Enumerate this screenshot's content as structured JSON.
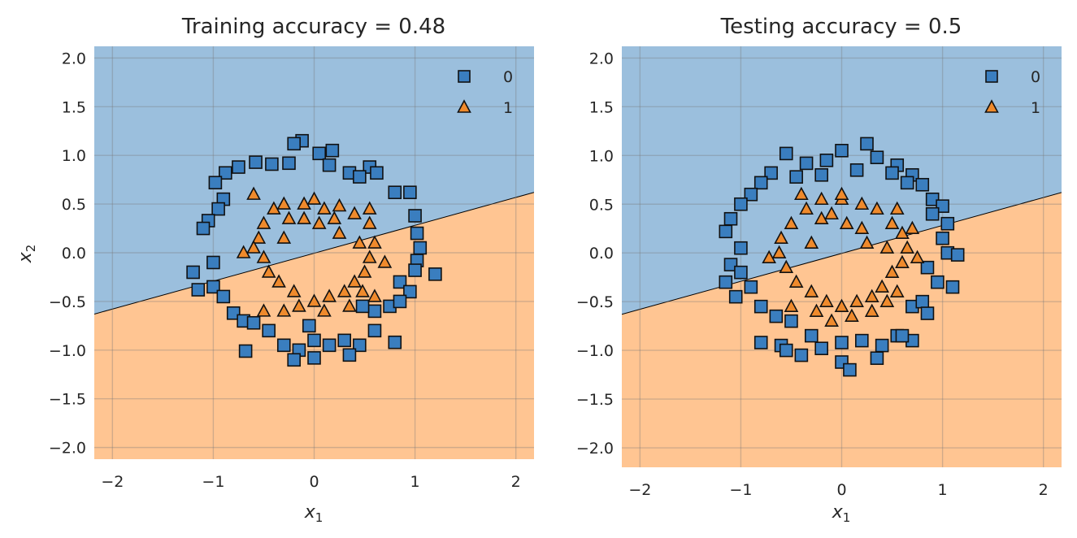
{
  "colors": {
    "class0_region": "#9bbfdd",
    "class1_region": "#ffc592",
    "class0_marker": "#3a7ebf",
    "class1_marker": "#ef8a2c",
    "grid": "#ffffff"
  },
  "chart_data": [
    {
      "type": "scatter",
      "title": "Training accuracy = 0.48",
      "xlabel": "x1",
      "ylabel": "x2",
      "xlim": [
        -2.18,
        2.18
      ],
      "ylim": [
        -2.12,
        2.12
      ],
      "xticks": [
        "−2",
        "−1",
        "0",
        "1",
        "2"
      ],
      "yticks": [
        "2.0",
        "1.5",
        "1.0",
        "0.5",
        "0.0",
        "−0.5",
        "−1.0",
        "−1.5",
        "−2.0"
      ],
      "grid": true,
      "legend": {
        "placement": "top-right",
        "entries": [
          "0",
          "1"
        ]
      },
      "decision_boundary": {
        "x": [
          -2.18,
          2.18
        ],
        "y": [
          -0.63,
          0.62
        ]
      },
      "series": [
        {
          "name": "0",
          "marker": "square",
          "points": [
            [
              -0.12,
              1.15
            ],
            [
              -0.2,
              1.12
            ],
            [
              0.05,
              1.02
            ],
            [
              0.18,
              1.05
            ],
            [
              -0.42,
              0.91
            ],
            [
              -0.58,
              0.93
            ],
            [
              -0.75,
              0.88
            ],
            [
              -0.88,
              0.82
            ],
            [
              -0.98,
              0.72
            ],
            [
              0.35,
              0.82
            ],
            [
              0.55,
              0.88
            ],
            [
              0.62,
              0.82
            ],
            [
              0.8,
              0.62
            ],
            [
              0.95,
              0.62
            ],
            [
              -0.9,
              0.55
            ],
            [
              -0.95,
              0.45
            ],
            [
              -1.05,
              0.33
            ],
            [
              -1.1,
              0.25
            ],
            [
              1.0,
              0.38
            ],
            [
              1.02,
              0.2
            ],
            [
              1.05,
              0.05
            ],
            [
              1.02,
              -0.08
            ],
            [
              1.0,
              -0.18
            ],
            [
              -1.0,
              -0.1
            ],
            [
              -1.2,
              -0.2
            ],
            [
              -1.15,
              -0.38
            ],
            [
              -1.0,
              -0.35
            ],
            [
              -0.9,
              -0.45
            ],
            [
              0.85,
              -0.3
            ],
            [
              0.95,
              -0.4
            ],
            [
              1.2,
              -0.22
            ],
            [
              -0.8,
              -0.62
            ],
            [
              -0.7,
              -0.7
            ],
            [
              -0.6,
              -0.72
            ],
            [
              0.6,
              -0.6
            ],
            [
              0.75,
              -0.55
            ],
            [
              0.85,
              -0.5
            ],
            [
              -0.45,
              -0.8
            ],
            [
              -0.3,
              -0.95
            ],
            [
              -0.15,
              -1.0
            ],
            [
              0.0,
              -0.9
            ],
            [
              0.15,
              -0.95
            ],
            [
              0.3,
              -0.9
            ],
            [
              0.45,
              -0.95
            ],
            [
              0.6,
              -0.8
            ],
            [
              -0.2,
              -1.1
            ],
            [
              0.0,
              -1.08
            ],
            [
              0.35,
              -1.05
            ],
            [
              0.8,
              -0.92
            ],
            [
              -0.68,
              -1.01
            ],
            [
              0.48,
              -0.55
            ],
            [
              -0.05,
              -0.75
            ],
            [
              0.15,
              0.9
            ],
            [
              0.45,
              0.78
            ],
            [
              -0.25,
              0.92
            ]
          ]
        },
        {
          "name": "1",
          "marker": "triangle",
          "points": [
            [
              -0.6,
              0.6
            ],
            [
              -0.3,
              0.5
            ],
            [
              -0.1,
              0.5
            ],
            [
              0.1,
              0.45
            ],
            [
              0.25,
              0.48
            ],
            [
              0.4,
              0.4
            ],
            [
              0.55,
              0.3
            ],
            [
              -0.5,
              0.3
            ],
            [
              -0.55,
              0.15
            ],
            [
              -0.6,
              0.05
            ],
            [
              -0.5,
              -0.05
            ],
            [
              -0.45,
              -0.2
            ],
            [
              -0.35,
              -0.3
            ],
            [
              -0.2,
              -0.4
            ],
            [
              0.0,
              -0.5
            ],
            [
              0.15,
              -0.45
            ],
            [
              0.3,
              -0.4
            ],
            [
              0.4,
              -0.3
            ],
            [
              0.5,
              -0.2
            ],
            [
              0.55,
              -0.05
            ],
            [
              0.6,
              0.1
            ],
            [
              -0.25,
              0.35
            ],
            [
              0.05,
              0.3
            ],
            [
              0.2,
              0.35
            ],
            [
              -0.15,
              -0.55
            ],
            [
              0.35,
              -0.55
            ],
            [
              -0.5,
              -0.6
            ],
            [
              0.6,
              -0.45
            ],
            [
              0.45,
              0.1
            ],
            [
              -0.3,
              0.15
            ],
            [
              0.7,
              -0.1
            ],
            [
              -0.7,
              0.0
            ],
            [
              0.0,
              0.55
            ],
            [
              -0.4,
              0.45
            ],
            [
              0.25,
              0.2
            ],
            [
              0.1,
              -0.6
            ],
            [
              -0.3,
              -0.6
            ],
            [
              0.55,
              0.45
            ],
            [
              0.48,
              -0.4
            ],
            [
              -0.1,
              0.35
            ]
          ]
        }
      ]
    },
    {
      "type": "scatter",
      "title": "Testing accuracy = 0.5",
      "xlabel": "x1",
      "ylabel": "",
      "xlim": [
        -2.18,
        2.18
      ],
      "ylim": [
        -2.2,
        2.12
      ],
      "xticks": [
        "−2",
        "−1",
        "0",
        "1",
        "2"
      ],
      "yticks": [
        "2.0",
        "1.5",
        "1.0",
        "0.5",
        "0.0",
        "−0.5",
        "−1.0",
        "−1.5",
        "−2.0"
      ],
      "grid": true,
      "legend": {
        "placement": "top-right",
        "entries": [
          "0",
          "1"
        ]
      },
      "decision_boundary": {
        "x": [
          -2.18,
          2.18
        ],
        "y": [
          -0.63,
          0.62
        ]
      },
      "series": [
        {
          "name": "0",
          "marker": "square",
          "points": [
            [
              -0.55,
              1.02
            ],
            [
              -0.35,
              0.92
            ],
            [
              -0.15,
              0.95
            ],
            [
              0.0,
              1.05
            ],
            [
              0.25,
              1.12
            ],
            [
              0.35,
              0.98
            ],
            [
              0.55,
              0.9
            ],
            [
              0.7,
              0.8
            ],
            [
              0.8,
              0.7
            ],
            [
              -0.7,
              0.82
            ],
            [
              -0.8,
              0.72
            ],
            [
              -0.9,
              0.6
            ],
            [
              -1.0,
              0.5
            ],
            [
              -1.1,
              0.35
            ],
            [
              -1.15,
              0.22
            ],
            [
              0.9,
              0.55
            ],
            [
              1.0,
              0.48
            ],
            [
              1.05,
              0.3
            ],
            [
              1.0,
              0.15
            ],
            [
              1.05,
              0.0
            ],
            [
              1.15,
              -0.02
            ],
            [
              -1.0,
              0.05
            ],
            [
              -1.1,
              -0.12
            ],
            [
              -1.15,
              -0.3
            ],
            [
              -1.0,
              -0.2
            ],
            [
              -0.9,
              -0.35
            ],
            [
              0.85,
              -0.15
            ],
            [
              0.95,
              -0.3
            ],
            [
              1.1,
              -0.35
            ],
            [
              -0.8,
              -0.55
            ],
            [
              -0.65,
              -0.65
            ],
            [
              -0.5,
              -0.7
            ],
            [
              0.7,
              -0.55
            ],
            [
              0.8,
              -0.5
            ],
            [
              0.85,
              -0.62
            ],
            [
              -0.8,
              -0.92
            ],
            [
              -0.6,
              -0.95
            ],
            [
              -0.4,
              -1.05
            ],
            [
              -0.2,
              -0.98
            ],
            [
              0.0,
              -0.92
            ],
            [
              0.2,
              -0.9
            ],
            [
              0.4,
              -0.95
            ],
            [
              0.55,
              -0.85
            ],
            [
              0.7,
              -0.9
            ],
            [
              0.0,
              -1.12
            ],
            [
              0.08,
              -1.2
            ],
            [
              0.35,
              -1.08
            ],
            [
              -0.55,
              -1.0
            ],
            [
              0.5,
              0.82
            ],
            [
              -0.2,
              0.8
            ],
            [
              0.15,
              0.85
            ],
            [
              -0.45,
              0.78
            ],
            [
              0.65,
              0.72
            ],
            [
              0.9,
              0.4
            ],
            [
              -1.05,
              -0.45
            ],
            [
              0.6,
              -0.85
            ],
            [
              -0.3,
              -0.85
            ]
          ]
        },
        {
          "name": "1",
          "marker": "triangle",
          "points": [
            [
              -0.4,
              0.6
            ],
            [
              -0.2,
              0.55
            ],
            [
              0.0,
              0.55
            ],
            [
              0.2,
              0.5
            ],
            [
              0.35,
              0.45
            ],
            [
              0.5,
              0.3
            ],
            [
              0.6,
              0.2
            ],
            [
              -0.5,
              0.3
            ],
            [
              -0.6,
              0.15
            ],
            [
              -0.62,
              0.0
            ],
            [
              -0.55,
              -0.15
            ],
            [
              -0.45,
              -0.3
            ],
            [
              -0.3,
              -0.4
            ],
            [
              -0.15,
              -0.5
            ],
            [
              0.0,
              -0.55
            ],
            [
              0.15,
              -0.5
            ],
            [
              0.3,
              -0.45
            ],
            [
              0.4,
              -0.35
            ],
            [
              0.5,
              -0.2
            ],
            [
              0.6,
              -0.1
            ],
            [
              0.65,
              0.05
            ],
            [
              -0.2,
              0.35
            ],
            [
              0.05,
              0.3
            ],
            [
              0.2,
              0.25
            ],
            [
              -0.25,
              -0.6
            ],
            [
              0.3,
              -0.6
            ],
            [
              -0.5,
              -0.55
            ],
            [
              0.55,
              -0.4
            ],
            [
              0.45,
              0.05
            ],
            [
              -0.3,
              0.1
            ],
            [
              0.75,
              -0.05
            ],
            [
              -0.72,
              -0.05
            ],
            [
              0.0,
              0.6
            ],
            [
              -0.35,
              0.45
            ],
            [
              0.25,
              0.1
            ],
            [
              0.1,
              -0.65
            ],
            [
              -0.1,
              -0.7
            ],
            [
              0.55,
              0.45
            ],
            [
              0.45,
              -0.5
            ],
            [
              -0.1,
              0.4
            ],
            [
              0.7,
              0.25
            ]
          ]
        }
      ]
    }
  ]
}
